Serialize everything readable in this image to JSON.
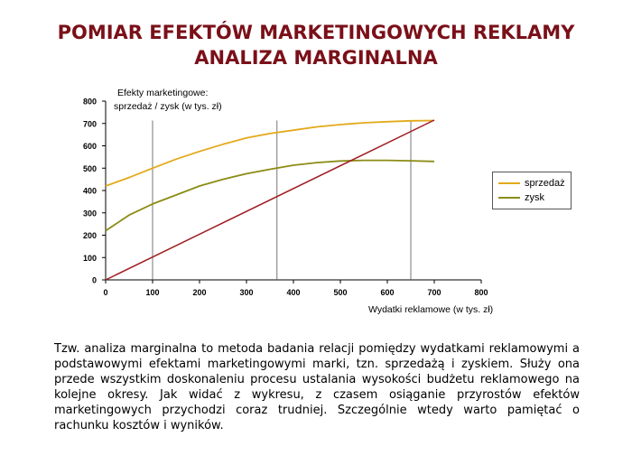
{
  "title": {
    "line1": "POMIAR EFEKTÓW MARKETINGOWYCH REKLAMY",
    "line2": "ANALIZA MARGINALNA"
  },
  "chart_data": {
    "type": "line",
    "ylabel_line1": "Efekty marketingowe:",
    "ylabel_line2": "sprzedaż / zysk (w tys. zł)",
    "xlabel": "Wydatki reklamowe (w tys. zł)",
    "xlim": [
      0,
      800
    ],
    "ylim": [
      0,
      800
    ],
    "xticks": [
      0,
      100,
      200,
      300,
      400,
      500,
      600,
      700,
      800
    ],
    "yticks": [
      0,
      100,
      200,
      300,
      400,
      500,
      600,
      700,
      800
    ],
    "series": [
      {
        "name": "sprzedaż",
        "color": "#e3a91a",
        "x": [
          0,
          50,
          100,
          150,
          200,
          250,
          300,
          350,
          400,
          450,
          500,
          550,
          600,
          650,
          700
        ],
        "y": [
          420,
          458,
          500,
          540,
          575,
          607,
          635,
          655,
          670,
          685,
          695,
          703,
          708,
          712,
          713
        ]
      },
      {
        "name": "zysk",
        "color": "#8b8c15",
        "x": [
          0,
          50,
          100,
          150,
          200,
          250,
          300,
          350,
          400,
          450,
          500,
          550,
          600,
          650,
          700
        ],
        "y": [
          220,
          290,
          340,
          380,
          420,
          450,
          475,
          495,
          513,
          525,
          532,
          535,
          535,
          533,
          530
        ]
      },
      {
        "color": "#a01e24",
        "x": [
          0,
          700
        ],
        "y": [
          0,
          715
        ]
      }
    ],
    "vlines": [
      100,
      365,
      650
    ],
    "legend_position": "right",
    "grid": false
  },
  "description": "Tzw. analiza marginalna to metoda badania relacji pomiędzy wydatkami reklamowymi a podstawowymi efektami marketingowymi marki, tzn. sprzedażą i zyskiem. Służy ona przede wszystkim doskonaleniu procesu ustalania wysokości budżetu reklamowego na kolejne okresy. Jak widać z wykresu, z czasem osiąganie przyrostów efektów marketingowych przychodzi coraz trudniej. Szczególnie wtedy warto pamiętać o rachunku kosztów i wyników."
}
